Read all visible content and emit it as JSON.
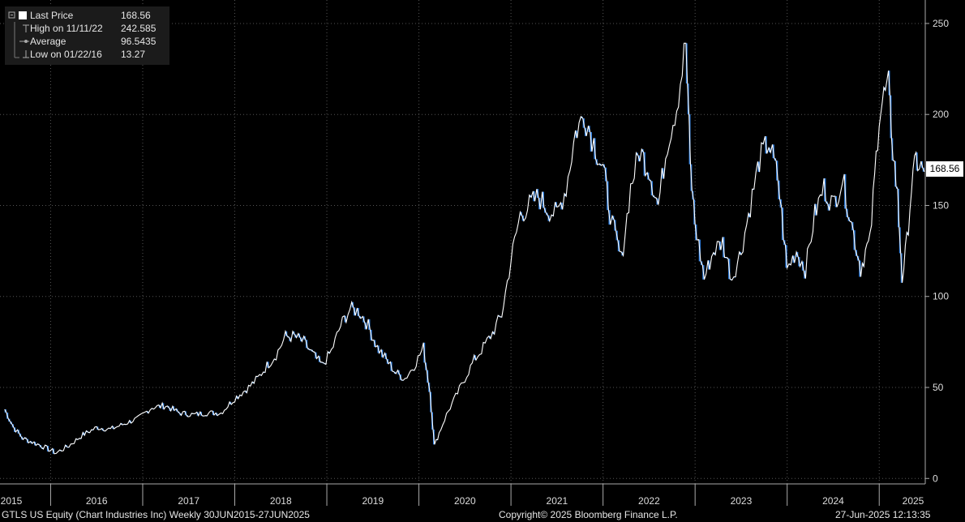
{
  "legend": {
    "last_price": {
      "label": "Last Price",
      "value": "168.56"
    },
    "high": {
      "label": "High on 11/11/22",
      "value": "242.585"
    },
    "average": {
      "label": "Average",
      "value": "96.5435"
    },
    "low": {
      "label": "Low on 01/22/16",
      "value": "13.27"
    }
  },
  "last_price_tag": "168.56",
  "footer": {
    "left": "GTLS US Equity (Chart Industries Inc)  Weekly 30JUN2015-27JUN2025",
    "center": "Copyright© 2025 Bloomberg Finance L.P.",
    "right": "27-Jun-2025 12:13:35"
  },
  "colors": {
    "background": "#000000",
    "price_line": "#ffffff",
    "down_shading": "#2f7fe0",
    "grid": "#555555"
  },
  "chart_data": {
    "type": "line",
    "series": [
      {
        "name": "Last Price",
        "x": [
          2015.5,
          2015.6,
          2015.7,
          2015.8,
          2015.9,
          2016.06,
          2016.2,
          2016.35,
          2016.5,
          2016.65,
          2016.8,
          2016.95,
          2017.1,
          2017.25,
          2017.4,
          2017.55,
          2017.7,
          2017.85,
          2018.0,
          2018.15,
          2018.25,
          2018.35,
          2018.45,
          2018.55,
          2018.65,
          2018.75,
          2018.85,
          2018.95,
          2019.05,
          2019.15,
          2019.25,
          2019.35,
          2019.45,
          2019.55,
          2019.65,
          2019.75,
          2019.85,
          2019.95,
          2020.05,
          2020.12,
          2020.17,
          2020.22,
          2020.3,
          2020.4,
          2020.5,
          2020.6,
          2020.7,
          2020.8,
          2020.9,
          2021.0,
          2021.1,
          2021.2,
          2021.3,
          2021.4,
          2021.5,
          2021.6,
          2021.7,
          2021.8,
          2021.9,
          2022.0,
          2022.1,
          2022.2,
          2022.3,
          2022.4,
          2022.5,
          2022.6,
          2022.7,
          2022.8,
          2022.86,
          2022.9,
          2022.95,
          2023.0,
          2023.1,
          2023.2,
          2023.3,
          2023.4,
          2023.5,
          2023.6,
          2023.7,
          2023.8,
          2023.9,
          2024.0,
          2024.1,
          2024.2,
          2024.3,
          2024.4,
          2024.5,
          2024.6,
          2024.7,
          2024.8,
          2024.85,
          2024.9,
          2024.95,
          2025.0,
          2025.05,
          2025.1,
          2025.15,
          2025.2,
          2025.25,
          2025.3,
          2025.35,
          2025.4,
          2025.49
        ],
        "y": [
          38,
          28,
          22,
          20,
          18,
          14,
          18,
          24,
          28,
          27,
          30,
          33,
          39,
          40,
          36,
          35,
          36,
          36,
          44,
          50,
          55,
          62,
          68,
          78,
          78,
          75,
          68,
          62,
          70,
          84,
          93,
          92,
          84,
          72,
          65,
          58,
          55,
          62,
          72,
          48,
          18,
          25,
          35,
          45,
          55,
          65,
          72,
          80,
          90,
          120,
          145,
          150,
          155,
          148,
          145,
          160,
          190,
          200,
          185,
          170,
          140,
          120,
          160,
          180,
          170,
          150,
          185,
          205,
          225,
          240,
          170,
          140,
          110,
          125,
          130,
          110,
          125,
          150,
          175,
          185,
          165,
          115,
          125,
          115,
          145,
          160,
          150,
          165,
          140,
          115,
          125,
          130,
          165,
          200,
          210,
          215,
          180,
          155,
          110,
          130,
          160,
          175,
          168.56
        ]
      }
    ],
    "x_ticks": [
      "2015",
      "2016",
      "2017",
      "2018",
      "2019",
      "2020",
      "2021",
      "2022",
      "2023",
      "2024",
      "2025"
    ],
    "y_ticks": [
      0,
      50,
      100,
      150,
      200,
      250
    ],
    "ylim": [
      -3,
      262
    ],
    "xlim": [
      2015.45,
      2025.5
    ],
    "grid": true,
    "y_axis_side": "right",
    "legend_position": "top-left"
  }
}
